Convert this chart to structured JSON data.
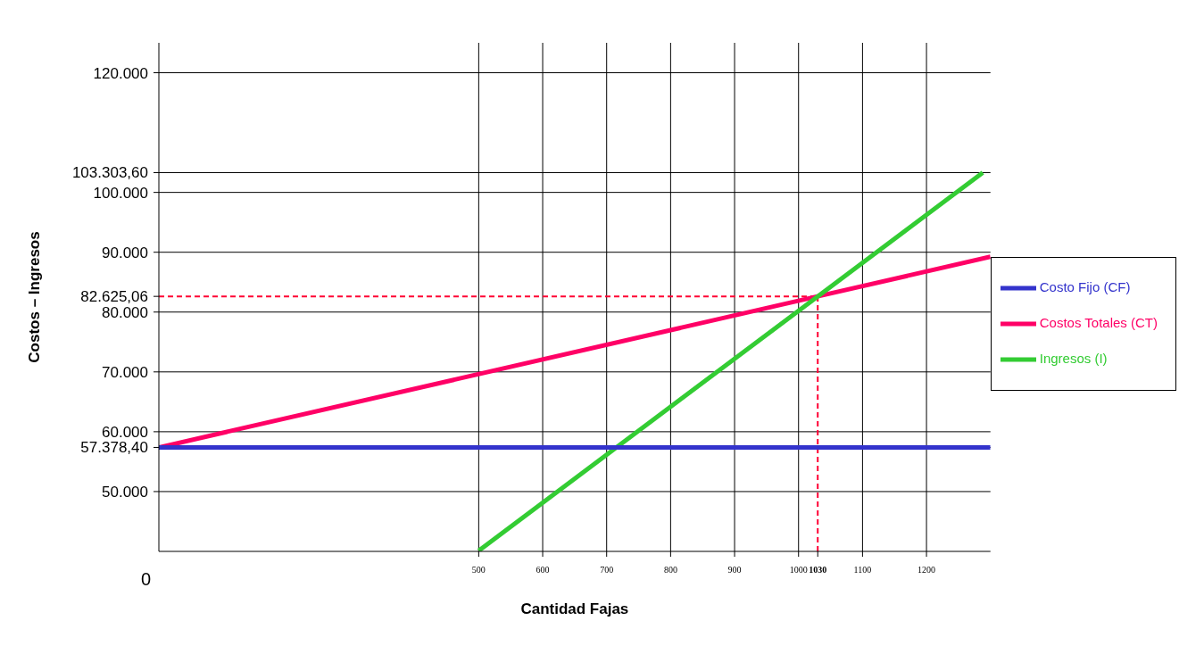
{
  "chart_data": {
    "type": "line",
    "xlabel": "Cantidad Fajas",
    "ylabel": "Costos – Ingresos",
    "xlim": [
      0,
      1300
    ],
    "xticks": [
      500,
      600,
      700,
      800,
      900,
      1000,
      1030,
      1100,
      1200
    ],
    "ylim": [
      40000,
      125000
    ],
    "yticks": [
      {
        "value": 50000,
        "label": "50.000"
      },
      {
        "value": 57378.4,
        "label": "57.378,40"
      },
      {
        "value": 60000,
        "label": "60.000"
      },
      {
        "value": 70000,
        "label": "70.000"
      },
      {
        "value": 80000,
        "label": "80.000"
      },
      {
        "value": 82625.06,
        "label": "82.625,06"
      },
      {
        "value": 90000,
        "label": "90.000"
      },
      {
        "value": 100000,
        "label": "100.000"
      },
      {
        "value": 103303.6,
        "label": "103.303,60"
      },
      {
        "value": 120000,
        "label": "120.000"
      }
    ],
    "series": [
      {
        "name": "Costos Totales (CT)",
        "color": "#ff0066",
        "x": [
          0,
          1030,
          1300
        ],
        "values": [
          57378.4,
          82625.06,
          89242
        ]
      },
      {
        "name": "Ingresos (I)",
        "color": "#33cc33",
        "x": [
          500,
          1030,
          1288
        ],
        "values": [
          40110,
          82625.06,
          103303.6
        ]
      },
      {
        "name": "Costo Fijo (CF)",
        "color": "#3333cc",
        "x": [
          0,
          1300
        ],
        "values": [
          57378.4,
          57378.4
        ]
      }
    ],
    "ref_lines": [
      {
        "axis": "y",
        "value": 82625.06,
        "color": "#ff0033",
        "line_style": "dashed"
      },
      {
        "axis": "x",
        "value": 1030,
        "color": "#ff0033",
        "line_style": "dashed"
      }
    ],
    "annotations": [
      "0"
    ],
    "grid": true,
    "legend": "right",
    "marker": "none",
    "line_style": "solid"
  }
}
